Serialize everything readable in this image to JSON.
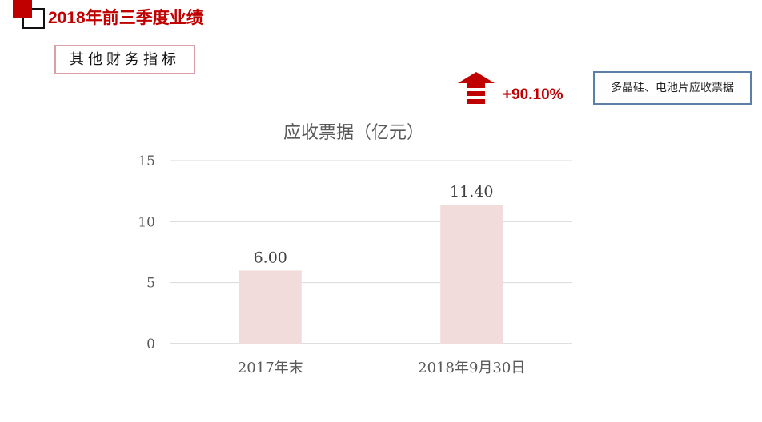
{
  "header": {
    "title": "2018年前三季度业绩",
    "subtitle": "其他财务指标"
  },
  "callout": {
    "change": "+90.10%",
    "direction": "up",
    "icon": "up-arrow-icon",
    "note": "多晶硅、电池片应收票据"
  },
  "colors": {
    "accent": "#c00000",
    "bar": "#f2dcdb"
  },
  "chart_data": {
    "type": "bar",
    "title": "应收票据（亿元）",
    "categories": [
      "2017年末",
      "2018年9月30日"
    ],
    "values": [
      6.0,
      11.4
    ],
    "data_labels": [
      "6.00",
      "11.40"
    ],
    "yticks": [
      "0",
      "5",
      "10",
      "15"
    ],
    "ylim": [
      0,
      15
    ],
    "grid": true,
    "xlabel": "",
    "ylabel": ""
  }
}
